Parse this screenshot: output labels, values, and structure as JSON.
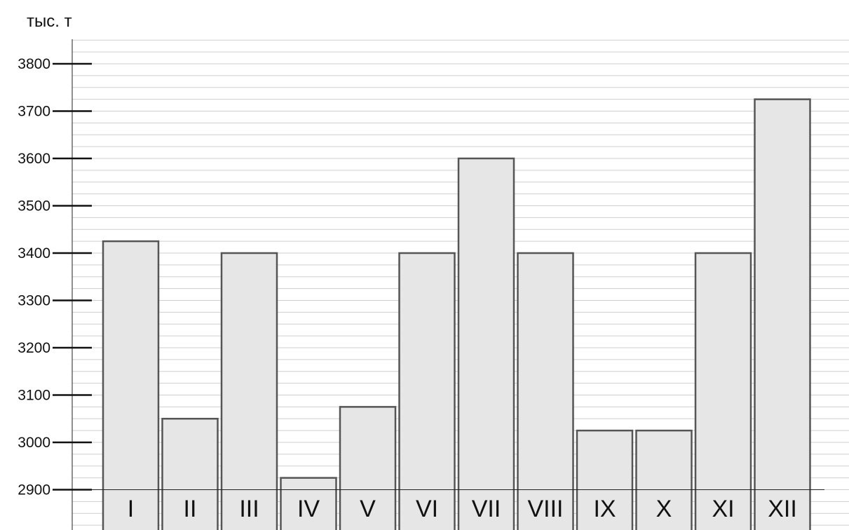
{
  "chart_data": {
    "type": "bar",
    "ylabel": "тыс. т",
    "categories": [
      "I",
      "II",
      "III",
      "IV",
      "V",
      "VI",
      "VII",
      "VIII",
      "IX",
      "X",
      "XI",
      "XII"
    ],
    "values": [
      3425,
      3050,
      3400,
      2925,
      3075,
      3400,
      3600,
      3400,
      3025,
      3025,
      3400,
      3725
    ],
    "yticks": [
      "2900",
      "3000",
      "3100",
      "3200",
      "3300",
      "3400",
      "3500",
      "3600",
      "3700",
      "3800"
    ],
    "ylim": [
      2800,
      3850
    ],
    "grid": true,
    "grid_step": 25,
    "colors": {
      "bar_fill": "#e6e6e6",
      "bar_stroke": "#555555"
    }
  }
}
